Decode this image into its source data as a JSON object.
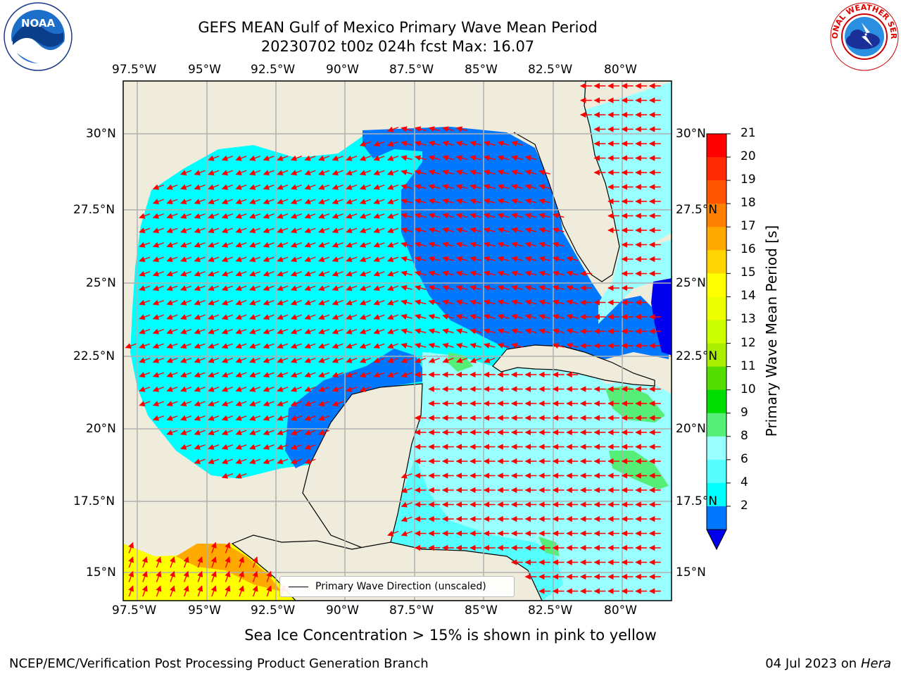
{
  "title": {
    "line1": "GEFS MEAN Gulf of Mexico Primary Wave Mean Period",
    "line2": "20230702 t00z 024h fcst   Max: 16.07"
  },
  "axes": {
    "lon_labels": [
      "97.5°W",
      "95°W",
      "92.5°W",
      "90°W",
      "87.5°W",
      "85°W",
      "82.5°W",
      "80°W"
    ],
    "lat_labels": [
      "30°N",
      "27.5°N",
      "25°N",
      "22.5°N",
      "20°N",
      "17.5°N",
      "15°N"
    ],
    "lon_range": [
      -98,
      -78.2
    ],
    "lat_range": [
      14,
      31.8
    ]
  },
  "colorbar": {
    "label": "Primary Wave Mean Period [s]",
    "ticks": [
      "21",
      "20",
      "19",
      "18",
      "17",
      "16",
      "15",
      "14",
      "13",
      "12",
      "11",
      "10",
      "9",
      "8",
      "6",
      "4",
      "2"
    ],
    "colors": [
      "#ff0000",
      "#ff2a00",
      "#ff5500",
      "#ff7f00",
      "#ffaa00",
      "#ffd400",
      "#ffff00",
      "#eeff00",
      "#ccff00",
      "#aaee00",
      "#55dd00",
      "#00dd00",
      "#55ee77",
      "#99ffff",
      "#55ffff",
      "#00ffff",
      "#0077ff"
    ],
    "extend_color": "#0000ee"
  },
  "legend": {
    "label": "Primary Wave Direction (unscaled)"
  },
  "note": "Sea Ice Concentration > 15% is shown in pink to yellow",
  "footer": {
    "left": "NCEP/EMC/Verification Post Processing Product Generation Branch",
    "right_date": "04 Jul 2023 on",
    "right_machine": "Hera"
  },
  "logos": {
    "left": "NOAA",
    "right_text": "NATIONAL WEATHER SERVICE"
  },
  "colors": {
    "land": "#efecdc",
    "grid": "#b0b0b0",
    "arrow": "#ff0000",
    "coast": "#000000"
  }
}
